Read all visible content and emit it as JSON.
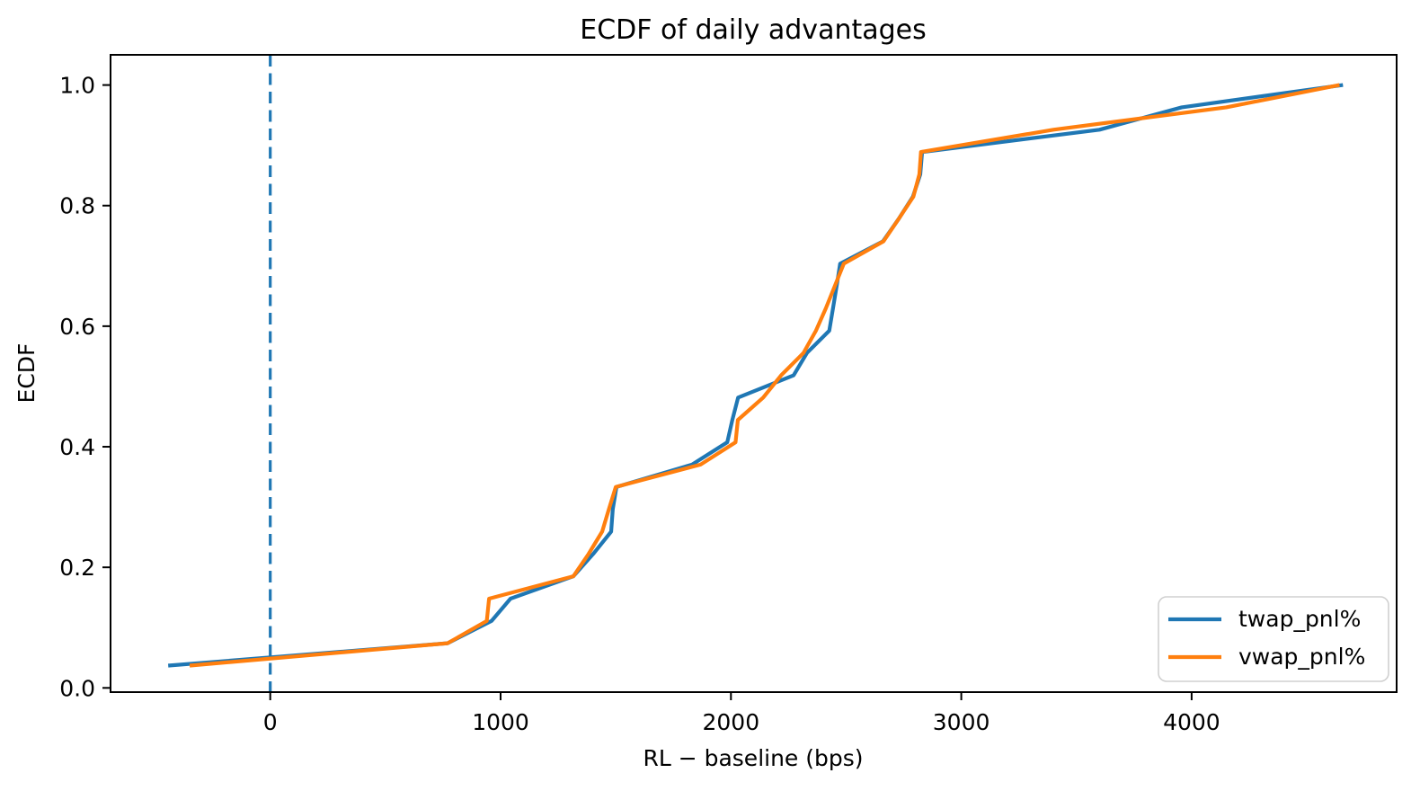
{
  "chart_data": {
    "type": "line",
    "title": "ECDF of daily advantages",
    "xlabel": "RL − baseline (bps)",
    "ylabel": "ECDF",
    "xlim": [
      -700,
      4910
    ],
    "ylim": [
      -0.011,
      1.048
    ],
    "grid": false,
    "legend_position": "lower right",
    "x_ticks": [
      0,
      1000,
      2000,
      3000,
      4000
    ],
    "x_tick_labels": [
      "0",
      "1000",
      "2000",
      "3000",
      "4000"
    ],
    "y_ticks": [
      0.0,
      0.2,
      0.4,
      0.6,
      0.8,
      1.0
    ],
    "y_tick_labels": [
      "0.0",
      "0.2",
      "0.4",
      "0.6",
      "0.8",
      "1.0"
    ],
    "reference_line": {
      "x": 0,
      "style": "dashed",
      "color": "#1f77b4"
    },
    "ecdf_levels": [
      0.037,
      0.0741,
      0.1111,
      0.1481,
      0.1852,
      0.2222,
      0.2593,
      0.2963,
      0.3333,
      0.3704,
      0.4074,
      0.4444,
      0.4815,
      0.5185,
      0.5556,
      0.5926,
      0.6296,
      0.6667,
      0.7037,
      0.7407,
      0.7778,
      0.8148,
      0.8519,
      0.8889,
      0.9259,
      0.963,
      1.0
    ],
    "series": [
      {
        "name": "twap_pnl%",
        "color": "#1f77b4",
        "x": [
          -443,
          770,
          961,
          1043,
          1316,
          1402,
          1480,
          1487,
          1503,
          1831,
          1984,
          2006,
          2031,
          2272,
          2330,
          2427,
          2443,
          2459,
          2474,
          2660,
          2728,
          2790,
          2822,
          2830,
          3600,
          3957,
          4657
        ]
      },
      {
        "name": "vwap_pnl%",
        "color": "#ff7f0e",
        "x": [
          -350,
          770,
          940,
          950,
          1316,
          1382,
          1441,
          1470,
          1500,
          1868,
          2020,
          2030,
          2140,
          2218,
          2315,
          2369,
          2412,
          2451,
          2490,
          2662,
          2728,
          2792,
          2818,
          2825,
          3400,
          4150,
          4642
        ]
      }
    ]
  }
}
